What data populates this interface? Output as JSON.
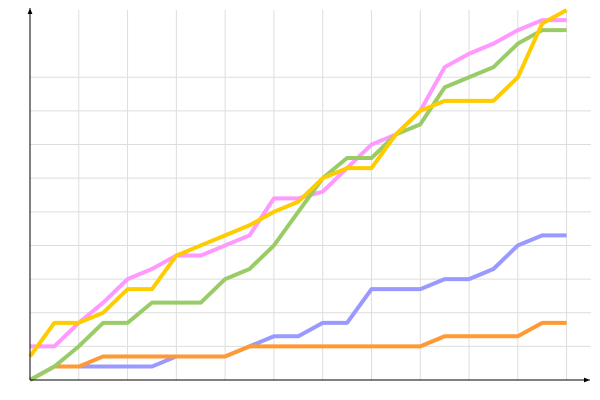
{
  "chart_data": {
    "type": "line",
    "x": [
      0,
      1,
      2,
      3,
      4,
      5,
      6,
      7,
      8,
      9,
      10,
      11,
      12,
      13,
      14,
      15,
      16,
      17,
      18,
      19,
      20,
      21,
      22
    ],
    "xlim": [
      0,
      23
    ],
    "xticks": [
      2,
      4,
      6,
      8,
      10,
      12,
      14,
      16,
      18,
      20,
      22
    ],
    "ylim": [
      0,
      11
    ],
    "yticks": [
      1,
      2,
      3,
      4,
      5,
      6,
      7,
      8,
      9
    ],
    "grid": true,
    "series": [
      {
        "color": "#9999ff",
        "values": [
          0,
          0.4,
          0.4,
          0.4,
          0.4,
          0.4,
          0.7,
          0.7,
          0.7,
          1.0,
          1.3,
          1.3,
          1.7,
          1.7,
          2.7,
          2.7,
          2.7,
          3.0,
          3.0,
          3.3,
          4.0,
          4.3,
          4.3
        ]
      },
      {
        "color": "#ff9933",
        "values": [
          0,
          0.4,
          0.4,
          0.7,
          0.7,
          0.7,
          0.7,
          0.7,
          0.7,
          1.0,
          1.0,
          1.0,
          1.0,
          1.0,
          1.0,
          1.0,
          1.0,
          1.3,
          1.3,
          1.3,
          1.3,
          1.7,
          1.7
        ]
      },
      {
        "color": "#ff99ff",
        "values": [
          1.0,
          1.0,
          1.7,
          2.3,
          3.0,
          3.3,
          3.7,
          3.7,
          4.0,
          4.3,
          5.4,
          5.4,
          5.6,
          6.3,
          7.0,
          7.3,
          8.0,
          9.3,
          9.7,
          10.0,
          10.4,
          10.7,
          10.7
        ]
      },
      {
        "color": "#99cc66",
        "values": [
          0,
          0.4,
          1.0,
          1.7,
          1.7,
          2.3,
          2.3,
          2.3,
          3.0,
          3.3,
          4.0,
          5.0,
          6.0,
          6.6,
          6.6,
          7.3,
          7.6,
          8.7,
          9.0,
          9.3,
          10.0,
          10.4,
          10.4
        ]
      },
      {
        "color": "#ffcc00",
        "values": [
          0.7,
          1.7,
          1.7,
          2.0,
          2.7,
          2.7,
          3.7,
          4.0,
          4.3,
          4.6,
          5.0,
          5.3,
          6.0,
          6.3,
          6.3,
          7.3,
          8.0,
          8.3,
          8.3,
          8.3,
          9.0,
          10.6,
          11.0
        ]
      }
    ]
  }
}
